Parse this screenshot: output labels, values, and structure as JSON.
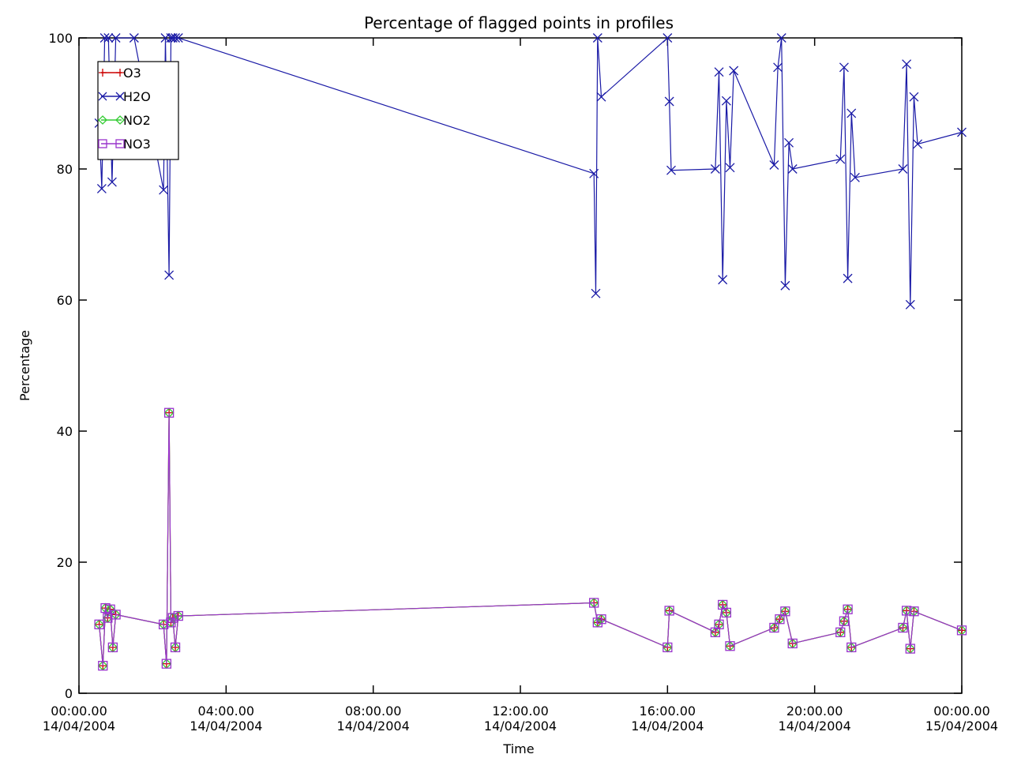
{
  "chart_data": {
    "type": "line",
    "title": "Percentage of flagged points in profiles",
    "xlabel": "Time",
    "ylabel": "Percentage",
    "ylim": [
      0,
      100
    ],
    "xlim_hours": [
      0,
      24
    ],
    "yticks": [
      0,
      20,
      40,
      60,
      80,
      100
    ],
    "xticks": [
      {
        "hour": 0,
        "time": "00:00.00",
        "date": "14/04/2004"
      },
      {
        "hour": 4,
        "time": "04:00.00",
        "date": "14/04/2004"
      },
      {
        "hour": 8,
        "time": "08:00.00",
        "date": "14/04/2004"
      },
      {
        "hour": 12,
        "time": "12:00.00",
        "date": "14/04/2004"
      },
      {
        "hour": 16,
        "time": "16:00.00",
        "date": "14/04/2004"
      },
      {
        "hour": 20,
        "time": "20:00.00",
        "date": "14/04/2004"
      },
      {
        "hour": 24,
        "time": "00:00.00",
        "date": "15/04/2004"
      }
    ],
    "legend": {
      "placement": "top-left"
    },
    "series": [
      {
        "name": "O3",
        "color": "#cc0000",
        "marker": "plus",
        "x": [
          0.55,
          0.65,
          0.72,
          0.78,
          0.85,
          0.92,
          1.0,
          2.3,
          2.38,
          2.45,
          2.5,
          2.55,
          2.62,
          2.7,
          14.0,
          14.1,
          14.2,
          16.0,
          16.05,
          17.3,
          17.4,
          17.5,
          17.6,
          17.7,
          18.9,
          19.05,
          19.2,
          19.4,
          20.7,
          20.8,
          20.9,
          21.0,
          22.4,
          22.5,
          22.6,
          22.7,
          24.0
        ],
        "y": [
          10.5,
          4.2,
          13.0,
          11.5,
          12.8,
          7.0,
          12.0,
          10.5,
          4.5,
          42.8,
          10.8,
          11.5,
          7.0,
          11.8,
          13.8,
          10.8,
          11.3,
          7.0,
          12.6,
          9.3,
          10.5,
          13.5,
          12.3,
          7.2,
          10.0,
          11.3,
          12.5,
          7.6,
          9.3,
          11.0,
          12.8,
          7.0,
          10.0,
          12.6,
          6.8,
          12.5,
          9.6
        ]
      },
      {
        "name": "H2O",
        "color": "#1a1aa6",
        "marker": "x",
        "x": [
          0.55,
          0.62,
          0.7,
          0.8,
          0.9,
          1.0,
          1.5,
          2.3,
          2.35,
          2.45,
          2.5,
          2.55,
          2.62,
          2.7,
          14.0,
          14.05,
          14.1,
          14.2,
          16.0,
          16.05,
          16.1,
          17.3,
          17.4,
          17.5,
          17.6,
          17.7,
          17.8,
          18.9,
          19.0,
          19.1,
          19.2,
          19.3,
          19.4,
          20.7,
          20.8,
          20.9,
          21.0,
          21.1,
          22.4,
          22.5,
          22.6,
          22.7,
          22.8,
          24.0
        ],
        "y": [
          87.0,
          77.0,
          100.0,
          100.0,
          78.0,
          100.0,
          100.0,
          76.8,
          100.0,
          63.8,
          100.0,
          100.0,
          100.0,
          100.0,
          79.3,
          61.0,
          100.0,
          91.0,
          100.0,
          90.3,
          79.8,
          80.0,
          94.8,
          63.1,
          90.4,
          80.2,
          95.0,
          80.6,
          95.5,
          100.0,
          62.2,
          84.0,
          80.0,
          81.5,
          95.5,
          63.3,
          88.5,
          78.7,
          80.0,
          96.0,
          59.3,
          91.0,
          83.8,
          85.6
        ]
      },
      {
        "name": "NO2",
        "color": "#33cc33",
        "marker": "diamond",
        "x": [
          0.55,
          0.65,
          0.72,
          0.78,
          0.85,
          0.92,
          1.0,
          2.3,
          2.38,
          2.45,
          2.5,
          2.55,
          2.62,
          2.7,
          14.0,
          14.1,
          14.2,
          16.0,
          16.05,
          17.3,
          17.4,
          17.5,
          17.6,
          17.7,
          18.9,
          19.05,
          19.2,
          19.4,
          20.7,
          20.8,
          20.9,
          21.0,
          22.4,
          22.5,
          22.6,
          22.7,
          24.0
        ],
        "y": [
          10.5,
          4.2,
          13.0,
          11.5,
          12.8,
          7.0,
          12.0,
          10.5,
          4.5,
          42.8,
          10.8,
          11.5,
          7.0,
          11.8,
          13.8,
          10.8,
          11.3,
          7.0,
          12.6,
          9.3,
          10.5,
          13.5,
          12.3,
          7.2,
          10.0,
          11.3,
          12.5,
          7.6,
          9.3,
          11.0,
          12.8,
          7.0,
          10.0,
          12.6,
          6.8,
          12.5,
          9.6
        ]
      },
      {
        "name": "NO3",
        "color": "#9933cc",
        "marker": "square",
        "x": [
          0.55,
          0.65,
          0.72,
          0.78,
          0.85,
          0.92,
          1.0,
          2.3,
          2.38,
          2.45,
          2.5,
          2.55,
          2.62,
          2.7,
          14.0,
          14.1,
          14.2,
          16.0,
          16.05,
          17.3,
          17.4,
          17.5,
          17.6,
          17.7,
          18.9,
          19.05,
          19.2,
          19.4,
          20.7,
          20.8,
          20.9,
          21.0,
          22.4,
          22.5,
          22.6,
          22.7,
          24.0
        ],
        "y": [
          10.5,
          4.2,
          13.0,
          11.5,
          12.8,
          7.0,
          12.0,
          10.5,
          4.5,
          42.8,
          10.8,
          11.5,
          7.0,
          11.8,
          13.8,
          10.8,
          11.3,
          7.0,
          12.6,
          9.3,
          10.5,
          13.5,
          12.3,
          7.2,
          10.0,
          11.3,
          12.5,
          7.6,
          9.3,
          11.0,
          12.8,
          7.0,
          10.0,
          12.6,
          6.8,
          12.5,
          9.6
        ]
      }
    ]
  }
}
